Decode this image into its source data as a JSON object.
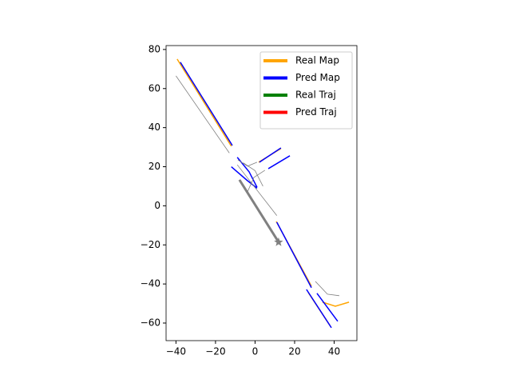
{
  "chart_data": {
    "type": "line",
    "xlim": [
      -45,
      51.5
    ],
    "ylim": [
      -69,
      82
    ],
    "xticks": [
      {
        "value": -40,
        "label": "−40"
      },
      {
        "value": -20,
        "label": "−20"
      },
      0,
      20,
      40
    ],
    "yticks": [
      {
        "value": -60,
        "label": "−60"
      },
      {
        "value": -40,
        "label": "−40"
      },
      {
        "value": -20,
        "label": "−20"
      },
      0,
      20,
      40,
      60,
      80
    ],
    "legend": "upper right",
    "series": [
      {
        "name": "Real Map",
        "color": "orange",
        "width": 1.5,
        "x": [
          -39.4,
          -12,
          null,
          1.8,
          13.1,
          null,
          10.7,
          28.5,
          null,
          26.9,
          38.1,
          null,
          34.1,
          40.6,
          47.5
        ],
        "y": [
          75.1,
          30.5,
          null,
          22.3,
          29.3,
          null,
          -8,
          -41.1,
          null,
          -44.4,
          -61.6,
          null,
          -49.3,
          -51.4,
          -49.3
        ]
      },
      {
        "name": "Pred Map",
        "color": "blue",
        "width": 1.5,
        "x": [
          -37.8,
          -11.5,
          null,
          -12,
          -4,
          1,
          null,
          -9,
          -3,
          1,
          null,
          2.2,
          13.1,
          null,
          6.7,
          17.6,
          null,
          11,
          28.5,
          null,
          26,
          38.6,
          null,
          31.3,
          41.8
        ],
        "y": [
          73.5,
          30.9,
          null,
          20,
          13,
          9,
          null,
          24.8,
          17.4,
          9.5,
          null,
          22.3,
          29.6,
          null,
          19,
          25.6,
          null,
          -8.4,
          -41.9,
          null,
          -42.8,
          -62.4,
          null,
          -44.8,
          -59.1
        ]
      },
      {
        "name": "Real Traj",
        "color": "green",
        "width": 3,
        "x": [],
        "y": []
      },
      {
        "name": "Pred Traj",
        "color": "red",
        "width": 3,
        "x": [],
        "y": []
      },
      {
        "color": "gray",
        "width": 0.8,
        "x": [
          -40,
          -13,
          null,
          -9,
          11,
          null,
          30.5,
          36.6,
          42.6,
          null,
          -8.7,
          -3.8,
          1,
          null,
          -3.8,
          -0.6,
          5,
          null,
          -6,
          0,
          4
        ],
        "y": [
          66.5,
          27,
          null,
          21,
          -5,
          null,
          -38.7,
          -45.2,
          -46,
          null,
          23.5,
          20.3,
          22.3,
          null,
          7.2,
          14.5,
          18.2,
          null,
          22,
          18,
          10
        ]
      },
      {
        "color": "gray",
        "width": 3,
        "marker": "star",
        "x": [
          -7.9,
          11.9
        ],
        "y": [
          13.3,
          -18.6
        ]
      }
    ]
  }
}
